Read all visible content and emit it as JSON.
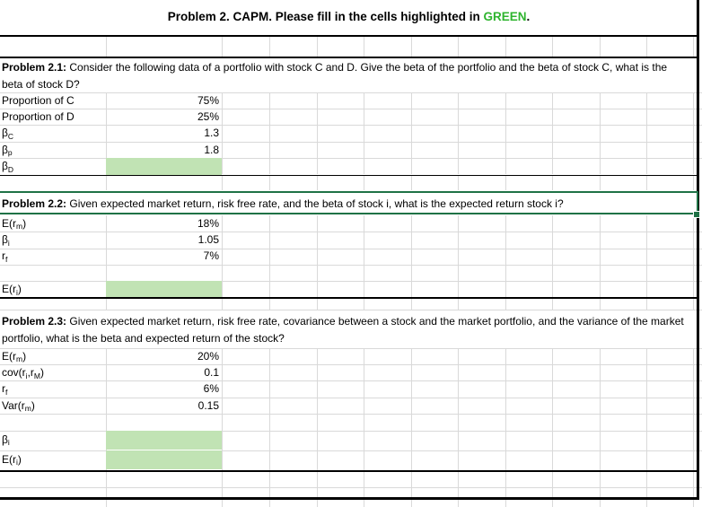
{
  "title": {
    "prefix": "Problem 2. CAPM. Please fill in the cells highlighted in ",
    "highlight": "GREEN",
    "suffix": "."
  },
  "colors": {
    "highlight_green": "#2eb42e",
    "green_fill": "#c1e3b4",
    "selection_green": "#1f7246",
    "gridline": "#d9d9d9"
  },
  "sections": [
    {
      "heading_bold": "Problem 2.1:",
      "heading_rest": " Consider the following data of a portfolio with stock C and D. Give the beta of the portfolio and the beta of stock C, what is the beta of stock D?",
      "rows": [
        {
          "label": [
            {
              "t": "Proportion of C"
            }
          ],
          "value": "75%"
        },
        {
          "label": [
            {
              "t": "Proportion of D"
            }
          ],
          "value": "25%"
        },
        {
          "label": [
            {
              "t": "β"
            },
            {
              "s": "C"
            }
          ],
          "value": "1.3"
        },
        {
          "label": [
            {
              "t": "β"
            },
            {
              "s": "p"
            }
          ],
          "value": "1.8"
        },
        {
          "label": [
            {
              "t": "β"
            },
            {
              "s": "D"
            }
          ],
          "value": "",
          "highlighted": true
        }
      ]
    },
    {
      "heading_bold": "Problem 2.2:",
      "heading_rest": " Given expected market return, risk free rate, and the beta of stock i, what is the expected return stock i?",
      "selected": true,
      "rows": [
        {
          "label": [
            {
              "t": "E(r"
            },
            {
              "s": "m"
            },
            {
              "t": ")"
            }
          ],
          "value": "18%"
        },
        {
          "label": [
            {
              "t": "β"
            },
            {
              "s": "i"
            }
          ],
          "value": "1.05"
        },
        {
          "label": [
            {
              "t": "r"
            },
            {
              "s": "f"
            }
          ],
          "value": "7%"
        },
        {
          "label": [
            {
              "t": "E(r"
            },
            {
              "s": "i"
            },
            {
              "t": ")"
            }
          ],
          "value": "",
          "highlighted": true
        }
      ]
    },
    {
      "heading_bold": "Problem 2.3:",
      "heading_rest": " Given expected market return, risk free rate, covariance between a stock and the market portfolio, and the variance of the market portfolio, what is the beta and expected return of the stock?",
      "rows": [
        {
          "label": [
            {
              "t": "E(r"
            },
            {
              "s": "m"
            },
            {
              "t": ")"
            }
          ],
          "value": "20%"
        },
        {
          "label": [
            {
              "t": "cov(r"
            },
            {
              "s": "i"
            },
            {
              "t": ",r"
            },
            {
              "s": "M"
            },
            {
              "t": ")"
            }
          ],
          "value": "0.1"
        },
        {
          "label": [
            {
              "t": "r"
            },
            {
              "s": "f"
            }
          ],
          "value": "6%"
        },
        {
          "label": [
            {
              "t": "Var(r"
            },
            {
              "s": "m"
            },
            {
              "t": ")"
            }
          ],
          "value": "0.15"
        },
        {
          "label": [
            {
              "t": "β"
            },
            {
              "s": "i"
            }
          ],
          "value": "",
          "highlighted": true
        },
        {
          "label": [
            {
              "t": "E(r"
            },
            {
              "s": "i"
            },
            {
              "t": ")"
            }
          ],
          "value": "",
          "highlighted": true
        }
      ]
    }
  ]
}
